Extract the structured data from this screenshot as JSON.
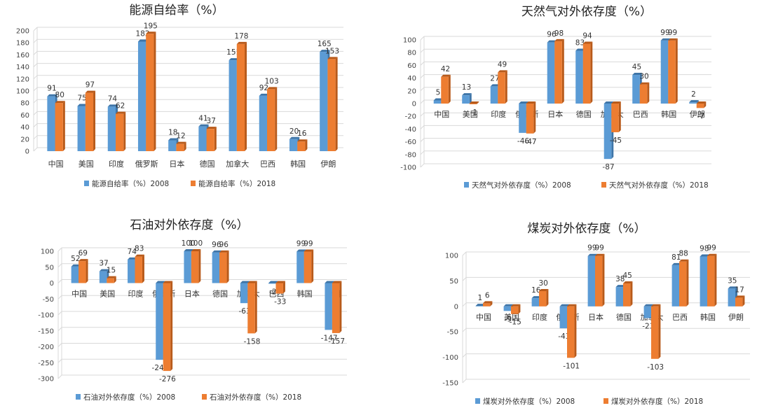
{
  "colors": {
    "series_2008": "#5B9BD5",
    "series_2008_side": "#3E75A8",
    "series_2018": "#ED7D31",
    "series_2018_side": "#B85A1A",
    "grid": "#d9d9d9"
  },
  "chart_data": [
    {
      "type": "bar",
      "title": "能源自给率（%）",
      "categories": [
        "中国",
        "美国",
        "印度",
        "俄罗斯",
        "日本",
        "德国",
        "加拿大",
        "巴西",
        "韩国",
        "伊朗"
      ],
      "series": [
        {
          "name": "能源自给率（%）2008",
          "values": [
            91,
            75,
            74,
            182,
            18,
            41,
            151,
            92,
            20,
            165
          ]
        },
        {
          "name": "能源自给率（%）2018",
          "values": [
            80,
            97,
            62,
            195,
            12,
            37,
            178,
            103,
            16,
            153
          ]
        }
      ],
      "ylim": [
        0,
        200
      ],
      "ticks": [
        0,
        20,
        40,
        60,
        80,
        100,
        120,
        140,
        160,
        180,
        200
      ],
      "legend": "bottom"
    },
    {
      "type": "bar",
      "title": "天然气对外依存度（%）",
      "categories": [
        "中国",
        "美国",
        "印度",
        "俄罗斯",
        "日本",
        "德国",
        "加拿大",
        "巴西",
        "韩国",
        "伊朗"
      ],
      "series": [
        {
          "name": "天然气对外依存度（%）2008",
          "values": [
            5,
            13,
            27,
            -46,
            96,
            83,
            -87,
            45,
            99,
            2
          ]
        },
        {
          "name": "天然气对外依存度（%）2018",
          "values": [
            42,
            -1,
            49,
            -47,
            98,
            94,
            -45,
            30,
            99,
            -7
          ]
        }
      ],
      "ylim": [
        -100,
        100
      ],
      "ticks": [
        -100,
        -80,
        -60,
        -40,
        -20,
        0,
        20,
        40,
        60,
        80,
        100
      ],
      "legend": "bottom"
    },
    {
      "type": "bar",
      "title": "石油对外依存度（%）",
      "categories": [
        "中国",
        "美国",
        "印度",
        "俄罗斯",
        "日本",
        "德国",
        "加拿大",
        "巴西",
        "韩国",
        "伊朗"
      ],
      "series": [
        {
          "name": "石油对外依存度（%）2008",
          "values": [
            52,
            37,
            74,
            -241,
            100,
            96,
            -63,
            -2,
            99,
            -147
          ]
        },
        {
          "name": "石油对外依存度（%）2018",
          "values": [
            69,
            15,
            83,
            -276,
            100,
            96,
            -158,
            -33,
            99,
            -157
          ]
        }
      ],
      "ylim": [
        -300,
        100
      ],
      "ticks": [
        -300,
        -250,
        -200,
        -150,
        -100,
        -50,
        0,
        50,
        100
      ],
      "legend": "bottom"
    },
    {
      "type": "bar",
      "title": "煤炭对外依存度（%）",
      "categories": [
        "中国",
        "美国",
        "印度",
        "俄罗斯",
        "日本",
        "德国",
        "加拿大",
        "巴西",
        "韩国",
        "伊朗"
      ],
      "series": [
        {
          "name": "煤炭对外依存度（%）2008",
          "values": [
            1,
            -9,
            16,
            -43,
            99,
            38,
            -23,
            81,
            98,
            35
          ]
        },
        {
          "name": "煤炭对外依存度（%）2018",
          "values": [
            6,
            -15,
            30,
            -101,
            99,
            45,
            -103,
            88,
            99,
            17
          ]
        }
      ],
      "ylim": [
        -150,
        100
      ],
      "ticks": [
        -150,
        -100,
        -50,
        0,
        50,
        100
      ],
      "legend": "bottom"
    }
  ]
}
